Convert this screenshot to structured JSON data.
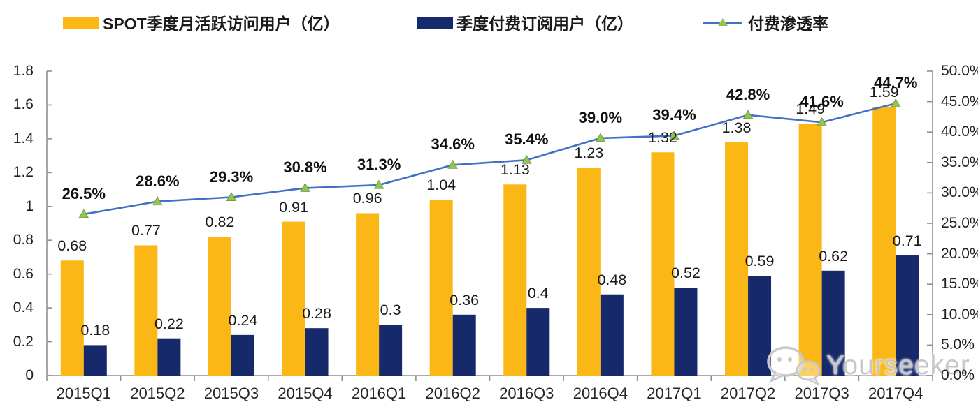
{
  "legend": [
    {
      "label": "SPOT季度月活跃访问用户（亿）",
      "type": "bar",
      "color": "#FBB716"
    },
    {
      "label": "季度付费订阅用户（亿）",
      "type": "bar",
      "color": "#15296B"
    },
    {
      "label": "付费渗透率",
      "type": "line",
      "color": "#4470C4",
      "marker_color": "#93C353"
    }
  ],
  "chart_data": {
    "type": "bar+line combo",
    "categories": [
      "2015Q1",
      "2015Q2",
      "2015Q3",
      "2015Q4",
      "2016Q1",
      "2016Q2",
      "2016Q3",
      "2016Q4",
      "2017Q1",
      "2017Q2",
      "2017Q3",
      "2017Q4"
    ],
    "series": [
      {
        "name": "SPOT季度月活跃访问用户（亿）",
        "type": "bar",
        "axis": "left",
        "color": "#FBB716",
        "values": [
          0.68,
          0.77,
          0.82,
          0.91,
          0.96,
          1.04,
          1.13,
          1.23,
          1.32,
          1.38,
          1.49,
          1.59
        ],
        "labels": [
          "0.68",
          "0.77",
          "0.82",
          "0.91",
          "0.96",
          "1.04",
          "1.13",
          "1.23",
          "1.32",
          "1.38",
          "1.49",
          "1.59"
        ]
      },
      {
        "name": "季度付费订阅用户（亿）",
        "type": "bar",
        "axis": "left",
        "color": "#15296B",
        "values": [
          0.18,
          0.22,
          0.24,
          0.28,
          0.3,
          0.36,
          0.4,
          0.48,
          0.52,
          0.59,
          0.62,
          0.71
        ],
        "labels": [
          "0.18",
          "0.22",
          "0.24",
          "0.28",
          "0.3",
          "0.36",
          "0.4",
          "0.48",
          "0.52",
          "0.59",
          "0.62",
          "0.71"
        ]
      },
      {
        "name": "付费渗透率",
        "type": "line",
        "axis": "right",
        "color": "#4470C4",
        "marker": "triangle",
        "marker_color": "#93C353",
        "values": [
          26.5,
          28.6,
          29.3,
          30.8,
          31.3,
          34.6,
          35.4,
          39.0,
          39.4,
          42.8,
          41.6,
          44.7
        ],
        "labels": [
          "26.5%",
          "28.6%",
          "29.3%",
          "30.8%",
          "31.3%",
          "34.6%",
          "35.4%",
          "39.0%",
          "39.4%",
          "42.8%",
          "41.6%",
          "44.7%"
        ]
      }
    ],
    "left_axis": {
      "min": 0,
      "max": 1.8,
      "tick_labels": [
        "1.8",
        "1.6",
        "1.4",
        "1.2",
        "1",
        "0.8",
        "0.6",
        "0.4",
        "0.2",
        "0"
      ],
      "tick_values": [
        1.8,
        1.6,
        1.4,
        1.2,
        1.0,
        0.8,
        0.6,
        0.4,
        0.2,
        0
      ]
    },
    "right_axis": {
      "min": 0,
      "max": 50,
      "tick_labels": [
        "50.0%",
        "45.0%",
        "40.0%",
        "35.0%",
        "30.0%",
        "25.0%",
        "20.0%",
        "15.0%",
        "10.0%",
        "5.0%",
        "0.0%"
      ],
      "tick_values": [
        50,
        45,
        40,
        35,
        30,
        25,
        20,
        15,
        10,
        5,
        0
      ]
    },
    "grid": false,
    "legend_position": "top"
  },
  "watermark": {
    "text": "Yourseeker",
    "icon": "wechat-icon"
  }
}
